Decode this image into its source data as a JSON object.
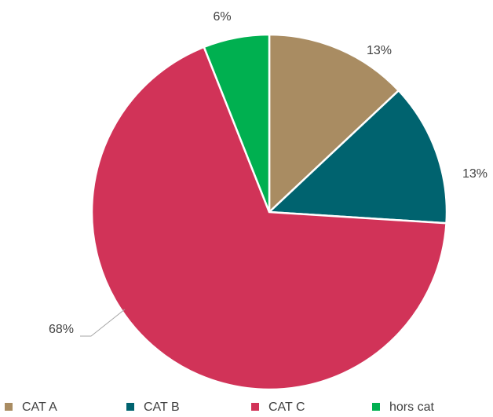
{
  "chart_data": {
    "type": "pie",
    "categories": [
      "CAT A",
      "CAT B",
      "CAT C",
      "hors cat"
    ],
    "values": [
      13,
      13,
      68,
      6
    ],
    "value_labels": [
      "13%",
      "13%",
      "68%",
      "6%"
    ],
    "colors": [
      "#a98c62",
      "#00636f",
      "#d13358",
      "#00b050"
    ],
    "legend": "bottom"
  }
}
